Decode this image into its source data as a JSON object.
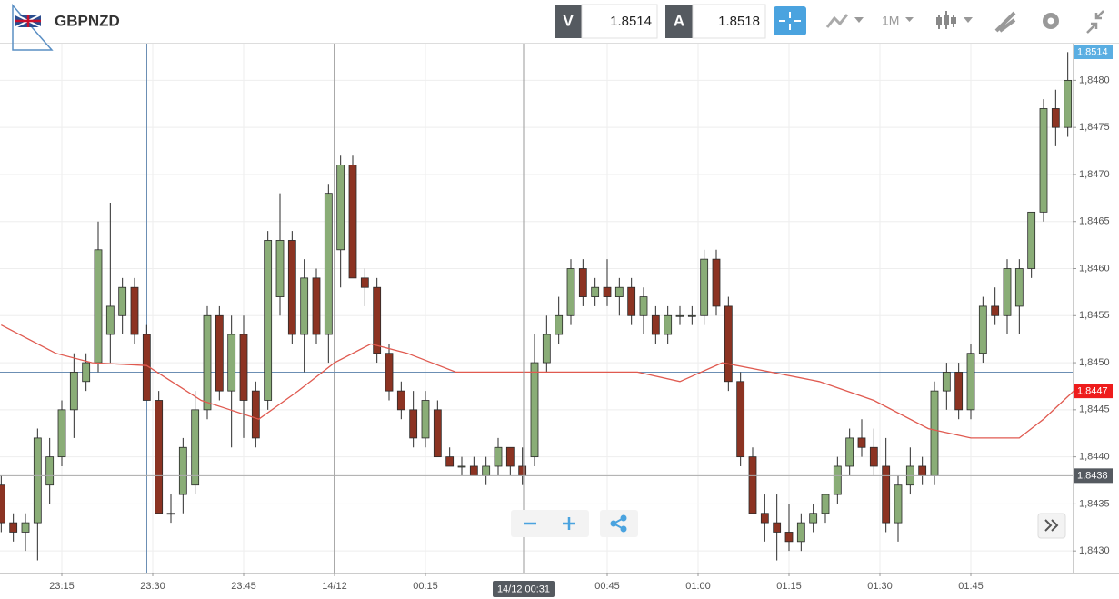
{
  "header": {
    "symbol": "GBPNZD",
    "bid_label": "V",
    "bid": "1.8514",
    "ask_label": "A",
    "ask": "1.8518",
    "timeframe": "1M"
  },
  "chart_data": {
    "type": "candlestick",
    "x": [
      -10,
      -8,
      -6,
      -4,
      -2,
      0,
      2,
      4,
      6,
      8,
      10,
      12,
      14,
      16,
      18,
      20,
      22,
      24,
      26,
      28,
      30,
      32,
      34,
      36,
      38,
      40,
      42,
      44,
      46,
      48,
      50,
      52,
      54,
      56,
      58,
      60,
      62,
      64,
      66,
      68,
      70,
      72,
      74,
      76,
      78,
      80,
      82,
      84,
      86,
      88,
      90,
      92,
      94,
      96,
      98,
      100,
      102,
      104,
      106,
      108,
      110,
      112,
      114,
      116,
      118,
      120,
      122,
      124,
      126,
      128,
      130,
      132,
      134,
      136,
      138,
      140,
      142,
      144,
      146,
      148,
      150,
      152,
      154,
      156,
      158,
      160,
      162,
      164,
      166
    ],
    "open": [
      1.8437,
      1.8433,
      1.8432,
      1.8433,
      1.8437,
      1.844,
      1.8445,
      1.8448,
      1.845,
      1.8453,
      1.8455,
      1.8458,
      1.8453,
      1.8446,
      1.8434,
      1.8436,
      1.8437,
      1.8445,
      1.8455,
      1.8447,
      1.8453,
      1.8447,
      1.8446,
      1.8457,
      1.8463,
      1.8453,
      1.8459,
      1.8453,
      1.8462,
      1.8471,
      1.8459,
      1.8458,
      1.8451,
      1.8447,
      1.8445,
      1.8442,
      1.8445,
      1.844,
      1.8439,
      1.8439,
      1.8438,
      1.8439,
      1.8441,
      1.8439,
      1.844,
      1.845,
      1.8453,
      1.8455,
      1.846,
      1.8457,
      1.8458,
      1.8457,
      1.8458,
      1.8455,
      1.8455,
      1.8453,
      1.8455,
      1.8455,
      1.8455,
      1.8461,
      1.8456,
      1.8448,
      1.844,
      1.8434,
      1.8433,
      1.8432,
      1.8431,
      1.8433,
      1.8434,
      1.8436,
      1.8439,
      1.8442,
      1.8441,
      1.8439,
      1.8433,
      1.8437,
      1.8439,
      1.8438,
      1.8447,
      1.8449,
      1.8445,
      1.8451,
      1.8456,
      1.8455,
      1.8456,
      1.846,
      1.8466,
      1.8477,
      1.8475
    ],
    "high": [
      1.8438,
      1.8434,
      1.8434,
      1.8443,
      1.8442,
      1.8446,
      1.8451,
      1.8451,
      1.8465,
      1.8467,
      1.8459,
      1.8459,
      1.8454,
      1.8447,
      1.8436,
      1.8442,
      1.8447,
      1.8456,
      1.8456,
      1.8455,
      1.8455,
      1.8448,
      1.8464,
      1.8468,
      1.8464,
      1.8461,
      1.846,
      1.8469,
      1.8472,
      1.8472,
      1.846,
      1.8459,
      1.8452,
      1.8448,
      1.8447,
      1.8447,
      1.8446,
      1.8441,
      1.844,
      1.844,
      1.844,
      1.8442,
      1.8441,
      1.8441,
      1.8453,
      1.8455,
      1.8457,
      1.8461,
      1.8461,
      1.8459,
      1.8461,
      1.8459,
      1.8459,
      1.8458,
      1.8456,
      1.8456,
      1.8456,
      1.8456,
      1.8462,
      1.8462,
      1.8457,
      1.8449,
      1.8441,
      1.8436,
      1.8436,
      1.8435,
      1.8434,
      1.8435,
      1.8436,
      1.844,
      1.8443,
      1.8444,
      1.8443,
      1.8442,
      1.8438,
      1.8441,
      1.844,
      1.8448,
      1.845,
      1.845,
      1.8452,
      1.8457,
      1.8458,
      1.8461,
      1.8461,
      1.8466,
      1.8478,
      1.8479,
      1.8483
    ],
    "low": [
      1.8432,
      1.8431,
      1.843,
      1.8429,
      1.8435,
      1.8439,
      1.8442,
      1.8447,
      1.8449,
      1.845,
      1.8453,
      1.8452,
      1.8446,
      1.8434,
      1.8433,
      1.8434,
      1.8436,
      1.8444,
      1.8446,
      1.8441,
      1.8442,
      1.8441,
      1.8445,
      1.8455,
      1.8452,
      1.8449,
      1.8452,
      1.845,
      1.8458,
      1.8459,
      1.8456,
      1.845,
      1.8446,
      1.8444,
      1.8441,
      1.8441,
      1.844,
      1.8439,
      1.8438,
      1.8438,
      1.8437,
      1.8438,
      1.8438,
      1.8437,
      1.8439,
      1.8449,
      1.8452,
      1.8454,
      1.8456,
      1.8456,
      1.8456,
      1.8455,
      1.8454,
      1.8453,
      1.8452,
      1.8452,
      1.8454,
      1.8454,
      1.8454,
      1.8455,
      1.8447,
      1.8439,
      1.8434,
      1.8431,
      1.8429,
      1.843,
      1.843,
      1.8432,
      1.8433,
      1.8435,
      1.8438,
      1.844,
      1.8438,
      1.8432,
      1.8431,
      1.8436,
      1.8437,
      1.8437,
      1.8445,
      1.8444,
      1.8444,
      1.845,
      1.8454,
      1.8453,
      1.8453,
      1.8459,
      1.8465,
      1.8473,
      1.8474
    ],
    "close": [
      1.8433,
      1.8432,
      1.8433,
      1.8442,
      1.844,
      1.8445,
      1.8449,
      1.845,
      1.8462,
      1.8456,
      1.8458,
      1.8453,
      1.8446,
      1.8434,
      1.8434,
      1.8441,
      1.8445,
      1.8455,
      1.8447,
      1.8453,
      1.8446,
      1.8442,
      1.8463,
      1.8463,
      1.8453,
      1.8459,
      1.8453,
      1.8468,
      1.8471,
      1.8459,
      1.8458,
      1.8451,
      1.8447,
      1.8445,
      1.8442,
      1.8446,
      1.844,
      1.8439,
      1.8439,
      1.8438,
      1.8439,
      1.8441,
      1.8439,
      1.8438,
      1.845,
      1.8453,
      1.8455,
      1.846,
      1.8457,
      1.8458,
      1.8457,
      1.8458,
      1.8455,
      1.8457,
      1.8453,
      1.8455,
      1.8455,
      1.8455,
      1.8461,
      1.8456,
      1.8448,
      1.844,
      1.8434,
      1.8433,
      1.8432,
      1.8431,
      1.8433,
      1.8434,
      1.8436,
      1.8439,
      1.8442,
      1.8441,
      1.8439,
      1.8433,
      1.8437,
      1.8439,
      1.8438,
      1.8447,
      1.8449,
      1.8445,
      1.8451,
      1.8456,
      1.8455,
      1.846,
      1.846,
      1.8466,
      1.8477,
      1.8475,
      1.848
    ],
    "up_color": "#8aad77",
    "down_color": "#8c3322",
    "outline_color": "#2b2b2b",
    "overlay": {
      "x": [
        -10,
        -1,
        5,
        14,
        23,
        32.5,
        39,
        45,
        51,
        57,
        65,
        74,
        80,
        86,
        95,
        102,
        109,
        117,
        125,
        134,
        143,
        150,
        158,
        162,
        167
      ],
      "values": [
        1.8454,
        1.8451,
        1.845,
        1.84497,
        1.8446,
        1.8444,
        1.8447,
        1.845,
        1.8452,
        1.8451,
        1.8449,
        1.8449,
        1.8449,
        1.8449,
        1.8449,
        1.8448,
        1.845,
        1.8449,
        1.8448,
        1.8446,
        1.8443,
        1.8442,
        1.8442,
        1.8444,
        1.8447
      ],
      "color": "#e05a50"
    },
    "xlim": [
      -10.2,
      166.8
    ],
    "xticks": [
      {
        "value": 0,
        "label": "23:15"
      },
      {
        "value": 15,
        "label": "23:30"
      },
      {
        "value": 30,
        "label": "23:45"
      },
      {
        "value": 45,
        "label": "14/12"
      },
      {
        "value": 60,
        "label": "00:15"
      },
      {
        "value": 90,
        "label": "00:45"
      },
      {
        "value": 105,
        "label": "01:00"
      },
      {
        "value": 120,
        "label": "01:15"
      },
      {
        "value": 135,
        "label": "01:30"
      },
      {
        "value": 150,
        "label": "01:45"
      }
    ],
    "ylim": [
      1.84277,
      1.84839
    ],
    "yticks": [
      {
        "value": 1.843,
        "label": "1,8430"
      },
      {
        "value": 1.8435,
        "label": "1,8435"
      },
      {
        "value": 1.844,
        "label": "1,8440"
      },
      {
        "value": 1.8445,
        "label": "1,8445"
      },
      {
        "value": 1.845,
        "label": "1,8450"
      },
      {
        "value": 1.8455,
        "label": "1,8455"
      },
      {
        "value": 1.846,
        "label": "1,8460"
      },
      {
        "value": 1.8465,
        "label": "1,8465"
      },
      {
        "value": 1.847,
        "label": "1,8470"
      },
      {
        "value": 1.8475,
        "label": "1,8475"
      },
      {
        "value": 1.848,
        "label": "1,8480"
      }
    ],
    "grid": true,
    "price_labels": [
      {
        "value": 1.8514,
        "label": "1,8514",
        "color": "#5aaee2"
      },
      {
        "value": 1.8447,
        "label": "1,8447",
        "color": "#ee1c1c"
      },
      {
        "value": 1.8438,
        "label": "1,8438",
        "color": "#555a60"
      }
    ],
    "crosshair": {
      "value": 76.2,
      "label": "14/12 00:31"
    }
  }
}
